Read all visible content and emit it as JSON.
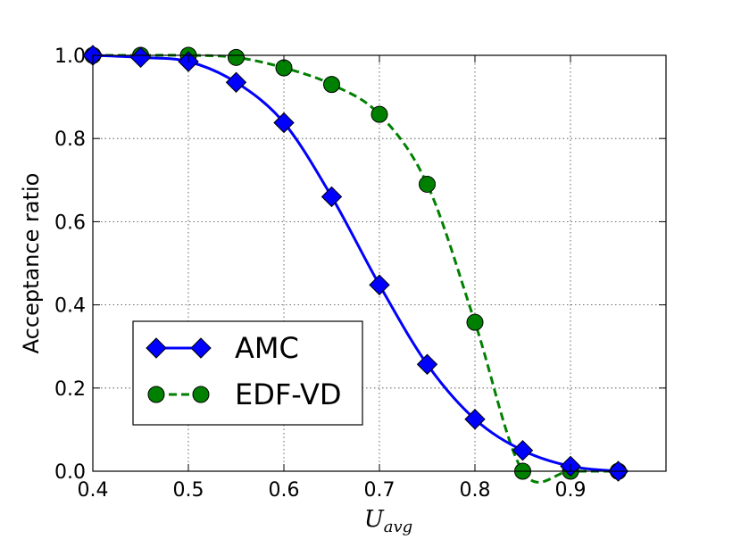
{
  "chart_data": {
    "type": "line",
    "title": "",
    "xlabel": "U_avg",
    "xlabel_main": "U",
    "xlabel_sub": "avg",
    "ylabel": "Acceptance ratio",
    "xlim": [
      0.4,
      1.0
    ],
    "ylim": [
      0.0,
      1.0
    ],
    "xticks": [
      0.4,
      0.5,
      0.6,
      0.7,
      0.8,
      0.9
    ],
    "xtick_labels": [
      "0.4",
      "0.5",
      "0.6",
      "0.7",
      "0.8",
      "0.9"
    ],
    "yticks": [
      0.0,
      0.2,
      0.4,
      0.6,
      0.8,
      1.0
    ],
    "ytick_labels": [
      "0.0",
      "0.2",
      "0.4",
      "0.6",
      "0.8",
      "1.0"
    ],
    "grid": true,
    "legend_position": "lower-left",
    "series": [
      {
        "name": "AMC",
        "color": "#0000ff",
        "line_style": "solid",
        "marker": "diamond",
        "x": [
          0.4,
          0.45,
          0.5,
          0.55,
          0.6,
          0.65,
          0.7,
          0.75,
          0.8,
          0.85,
          0.9,
          0.95
        ],
        "values": [
          1.0,
          0.995,
          0.985,
          0.935,
          0.838,
          0.66,
          0.448,
          0.257,
          0.125,
          0.05,
          0.012,
          0.0
        ]
      },
      {
        "name": "EDF-VD",
        "color": "#008000",
        "line_style": "dashed",
        "marker": "circle",
        "x": [
          0.4,
          0.45,
          0.5,
          0.55,
          0.6,
          0.65,
          0.7,
          0.75,
          0.8,
          0.85,
          0.9,
          0.95
        ],
        "values": [
          1.0,
          1.0,
          1.0,
          0.995,
          0.97,
          0.93,
          0.858,
          0.69,
          0.358,
          0.0,
          0.0,
          0.0
        ]
      }
    ]
  }
}
